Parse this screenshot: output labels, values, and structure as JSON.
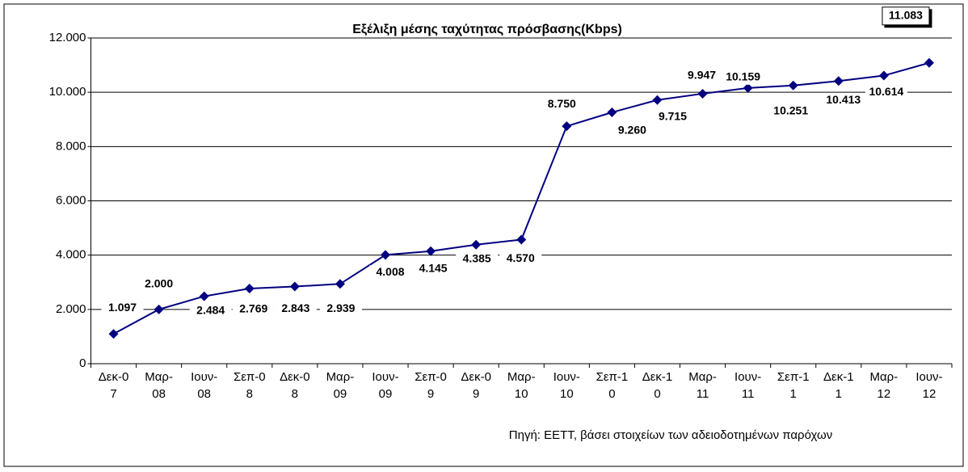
{
  "chart_data": {
    "type": "line",
    "title": "Εξέλιξη μέσης ταχύτητας πρόσβασης(Kbps)",
    "source": "Πηγή: ΕΕΤΤ, βάσει στοιχείων των αδειοδοτημένων παρόχων",
    "categories": [
      "Δεκ-07",
      "Μαρ-08",
      "Ιουν-08",
      "Σεπ-08",
      "Δεκ-08",
      "Μαρ-09",
      "Ιουν-09",
      "Σεπ-09",
      "Δεκ-09",
      "Μαρ-10",
      "Ιουν-10",
      "Σεπ-10",
      "Δεκ-10",
      "Μαρ-11",
      "Ιουν-11",
      "Σεπ-11",
      "Δεκ-11",
      "Μαρ-12",
      "Ιουν-12"
    ],
    "values": [
      1097,
      2000,
      2484,
      2769,
      2843,
      2939,
      4008,
      4145,
      4385,
      4570,
      8750,
      9260,
      9715,
      9947,
      10159,
      10251,
      10413,
      10614,
      11083
    ],
    "value_labels": [
      "1.097",
      "2.000",
      "2.484",
      "2.769",
      "2.843",
      "2.939",
      "4.008",
      "4.145",
      "4.385",
      "4.570",
      "8.750",
      "9.260",
      "9.715",
      "9.947",
      "10.159",
      "10.251",
      "10.413",
      "10.614",
      "11.083"
    ],
    "color": "#000080",
    "ylim": [
      0,
      12000
    ],
    "yticks": [
      0,
      {
        "value": 2000,
        "label": "2.000"
      },
      {
        "value": 4000,
        "label": "4.000"
      },
      {
        "value": 6000,
        "label": "6.000"
      },
      {
        "value": 8000,
        "label": "8.000"
      },
      {
        "value": 10000,
        "label": "10.000"
      },
      {
        "value": 12000,
        "label": "12.000"
      }
    ],
    "grid": true
  }
}
